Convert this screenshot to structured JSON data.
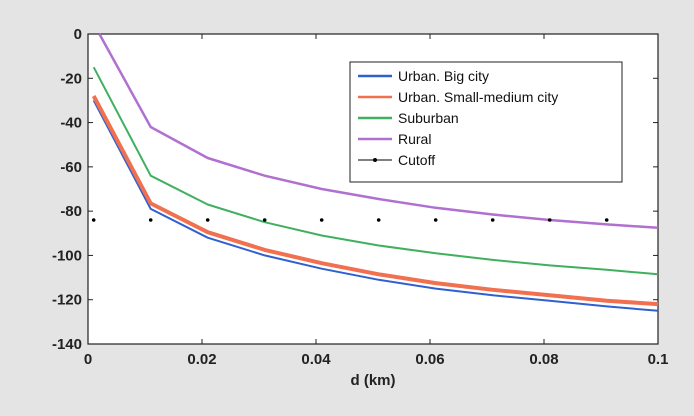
{
  "chart_data": {
    "type": "line",
    "title": "",
    "xlabel": "d (km)",
    "ylabel": "",
    "xlim": [
      0,
      0.1
    ],
    "ylim": [
      -140,
      0
    ],
    "xticks": [
      0,
      0.02,
      0.04,
      0.06,
      0.08,
      0.1
    ],
    "yticks": [
      0,
      -20,
      -40,
      -60,
      -80,
      -100,
      -120,
      -140
    ],
    "xtick_labels": [
      "0",
      "0.02",
      "0.04",
      "0.06",
      "0.08",
      "0.1"
    ],
    "ytick_labels": [
      "0",
      "-20",
      "-40",
      "-60",
      "-80",
      "-100",
      "-120",
      "-140"
    ],
    "grid": false,
    "legend_position": "top-right",
    "series": [
      {
        "name": "Urban. Big city",
        "color": "#3060d0",
        "x": [
          0.001,
          0.011,
          0.021,
          0.031,
          0.041,
          0.051,
          0.061,
          0.071,
          0.081,
          0.091,
          0.1
        ],
        "y": [
          -30,
          -79,
          -92,
          -100,
          -106,
          -111,
          -115,
          -118,
          -120.5,
          -123,
          -125
        ]
      },
      {
        "name": "Urban. Small-medium city",
        "color": "#f07050",
        "x": [
          0.001,
          0.011,
          0.021,
          0.031,
          0.041,
          0.051,
          0.061,
          0.071,
          0.081,
          0.091,
          0.1
        ],
        "y": [
          -28,
          -76.5,
          -89.5,
          -97.5,
          -103.5,
          -108.5,
          -112.5,
          -115.5,
          -118,
          -120.5,
          -122
        ]
      },
      {
        "name": "Suburban",
        "color": "#40b060",
        "x": [
          0.001,
          0.011,
          0.021,
          0.031,
          0.041,
          0.051,
          0.061,
          0.071,
          0.081,
          0.091,
          0.1
        ],
        "y": [
          -15,
          -64,
          -77,
          -85,
          -91,
          -95.5,
          -99,
          -102,
          -104.5,
          -106.5,
          -108.5
        ]
      },
      {
        "name": "Rural",
        "color": "#b070d0",
        "x": [
          0.002,
          0.011,
          0.021,
          0.031,
          0.041,
          0.051,
          0.061,
          0.071,
          0.081,
          0.091,
          0.1
        ],
        "y": [
          0,
          -42,
          -56,
          -64,
          -70,
          -74.5,
          -78.5,
          -81.5,
          -84,
          -86,
          -87.5
        ]
      },
      {
        "name": "Cutoff",
        "color": "#000000",
        "marker": "dot",
        "x": [
          0.001,
          0.011,
          0.021,
          0.031,
          0.041,
          0.051,
          0.061,
          0.071,
          0.081,
          0.091
        ],
        "y": [
          -84,
          -84,
          -84,
          -84,
          -84,
          -84,
          -84,
          -84,
          -84,
          -84
        ]
      }
    ]
  }
}
